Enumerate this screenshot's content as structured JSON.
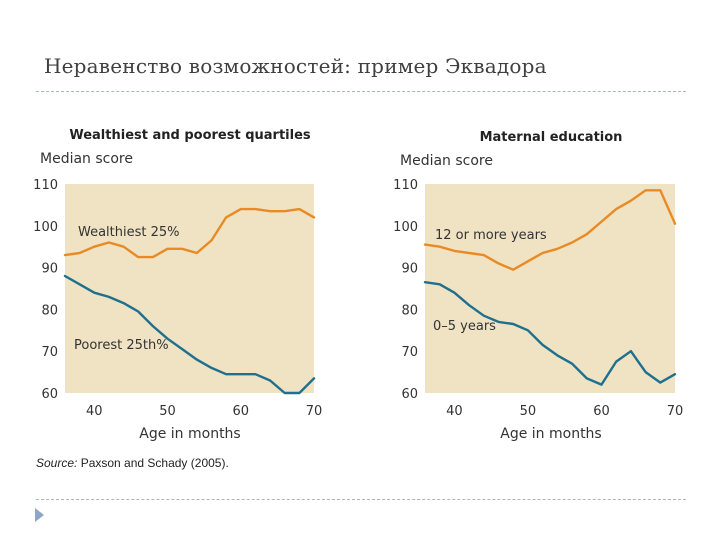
{
  "slide": {
    "title": "Неравенство возможностей: пример Эквадора",
    "source_prefix": "Source:",
    "source_text": " Paxson and Schady (2005)."
  },
  "colors": {
    "panel_bg": "#efe3c3",
    "orange": "#e98a24",
    "teal": "#1f6f8f",
    "rule": "#a8b7c4",
    "arrow": "#8fa6c8"
  },
  "chart_data": [
    {
      "type": "line",
      "title": "Wealthiest and poorest quartiles",
      "ylabel": "Median score",
      "xlabel": "Age in months",
      "xlim": [
        36,
        70
      ],
      "ylim": [
        60,
        110
      ],
      "xticks": [
        40,
        50,
        60,
        70
      ],
      "yticks": [
        110,
        100,
        90,
        80,
        70,
        60
      ],
      "series": [
        {
          "name": "Wealthiest 25%",
          "label": "Wealthiest 25%",
          "color": "orange",
          "x": [
            36,
            38,
            40,
            42,
            44,
            46,
            48,
            50,
            52,
            54,
            56,
            58,
            60,
            62,
            64,
            66,
            68,
            70
          ],
          "y": [
            93,
            93.5,
            95,
            96,
            95,
            92.5,
            92.5,
            94.5,
            94.5,
            93.5,
            96.5,
            102,
            104,
            104,
            103.5,
            103.5,
            104,
            102
          ]
        },
        {
          "name": "Poorest 25th%",
          "label": "Poorest 25th%",
          "color": "teal",
          "x": [
            36,
            38,
            40,
            42,
            44,
            46,
            48,
            50,
            52,
            54,
            56,
            58,
            60,
            62,
            64,
            66,
            68,
            70
          ],
          "y": [
            88,
            86,
            84,
            83,
            81.5,
            79.5,
            76,
            73,
            70.5,
            68,
            66,
            64.5,
            64.5,
            64.5,
            63,
            60,
            60,
            63.5
          ]
        }
      ]
    },
    {
      "type": "line",
      "title": "Maternal education",
      "ylabel": "Median score",
      "xlabel": "Age in months",
      "xlim": [
        36,
        70
      ],
      "ylim": [
        60,
        110
      ],
      "xticks": [
        40,
        50,
        60,
        70
      ],
      "yticks": [
        110,
        100,
        90,
        80,
        70,
        60
      ],
      "series": [
        {
          "name": "12 or more years",
          "label": "12 or more years",
          "color": "orange",
          "x": [
            36,
            38,
            40,
            42,
            44,
            46,
            48,
            50,
            52,
            54,
            56,
            58,
            60,
            62,
            64,
            66,
            68,
            70
          ],
          "y": [
            95.5,
            95,
            94,
            93.5,
            93,
            91,
            89.5,
            91.5,
            93.5,
            94.5,
            96,
            98,
            101,
            104,
            106,
            108.5,
            108.5,
            100.5
          ]
        },
        {
          "name": "0–5 years",
          "label": "0–5 years",
          "color": "teal",
          "x": [
            36,
            38,
            40,
            42,
            44,
            46,
            48,
            50,
            52,
            54,
            56,
            58,
            60,
            62,
            64,
            66,
            68,
            70
          ],
          "y": [
            86.5,
            86,
            84,
            81,
            78.5,
            77,
            76.5,
            75,
            71.5,
            69,
            67,
            63.5,
            62,
            67.5,
            70,
            65,
            62.5,
            64.5
          ]
        }
      ]
    }
  ]
}
